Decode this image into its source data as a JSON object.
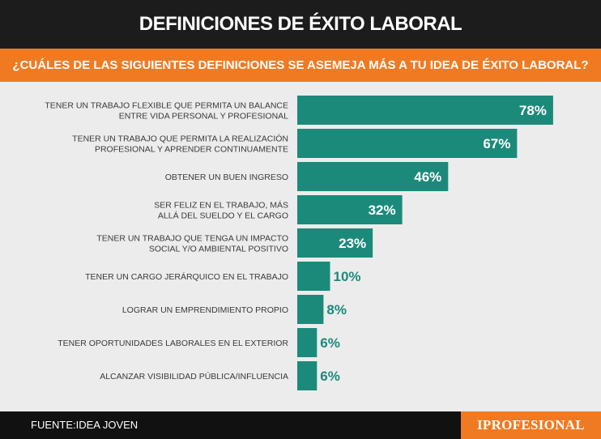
{
  "header": {
    "title": "DEFINICIONES DE ÉXITO LABORAL"
  },
  "question": {
    "text": "¿CUÁLES DE LAS SIGUIENTES DEFINICIONES SE ASEMEJA MÁS A TU IDEA DE ÉXITO LABORAL?"
  },
  "footer": {
    "source": "FUENTE:IDEA JOVEN",
    "brand": "IPROFESIONAL"
  },
  "colors": {
    "header_bg": "#1c1c1c",
    "accent_orange": "#f07a22",
    "bar": "#1c8a7a",
    "bar_label_outside": "#1c8a7a",
    "chart_bg": "#ececec",
    "category_text": "#3a3a3a",
    "footer_bg": "#111111"
  },
  "chart_data": {
    "type": "bar",
    "orientation": "horizontal",
    "categories": [
      [
        "TENER UN TRABAJO FLEXIBLE QUE PERMITA UN BALANCE",
        "ENTRE VIDA PERSONAL Y PROFESIONAL"
      ],
      [
        "TENER UN TRABAJO QUE PERMITA LA REALIZACIÓN",
        "PROFESIONAL Y APRENDER CONTINUAMENTE"
      ],
      [
        "OBTENER UN BUEN INGRESO"
      ],
      [
        "SER FELIZ EN EL TRABAJO, MÁS",
        "ALLÁ DEL SUELDO Y EL CARGO"
      ],
      [
        "TENER UN TRABAJO QUE TENGA UN IMPACTO",
        "SOCIAL Y/O AMBIENTAL POSITIVO"
      ],
      [
        "TENER UN CARGO JERÁRQUICO EN EL TRABAJO"
      ],
      [
        "LOGRAR UN EMPRENDIMIENTO PROPIO"
      ],
      [
        "TENER OPORTUNIDADES LABORALES EN EL EXTERIOR"
      ],
      [
        "ALCANZAR VISIBILIDAD PÚBLICA/INFLUENCIA"
      ]
    ],
    "values": [
      78,
      67,
      46,
      32,
      23,
      10,
      8,
      6,
      6
    ],
    "value_labels": [
      "78%",
      "67%",
      "46%",
      "32%",
      "23%",
      "10%",
      "8%",
      "6%",
      "6%"
    ],
    "value_unit": "%",
    "xlim": [
      0,
      100
    ],
    "grid": false,
    "legend": "none"
  }
}
